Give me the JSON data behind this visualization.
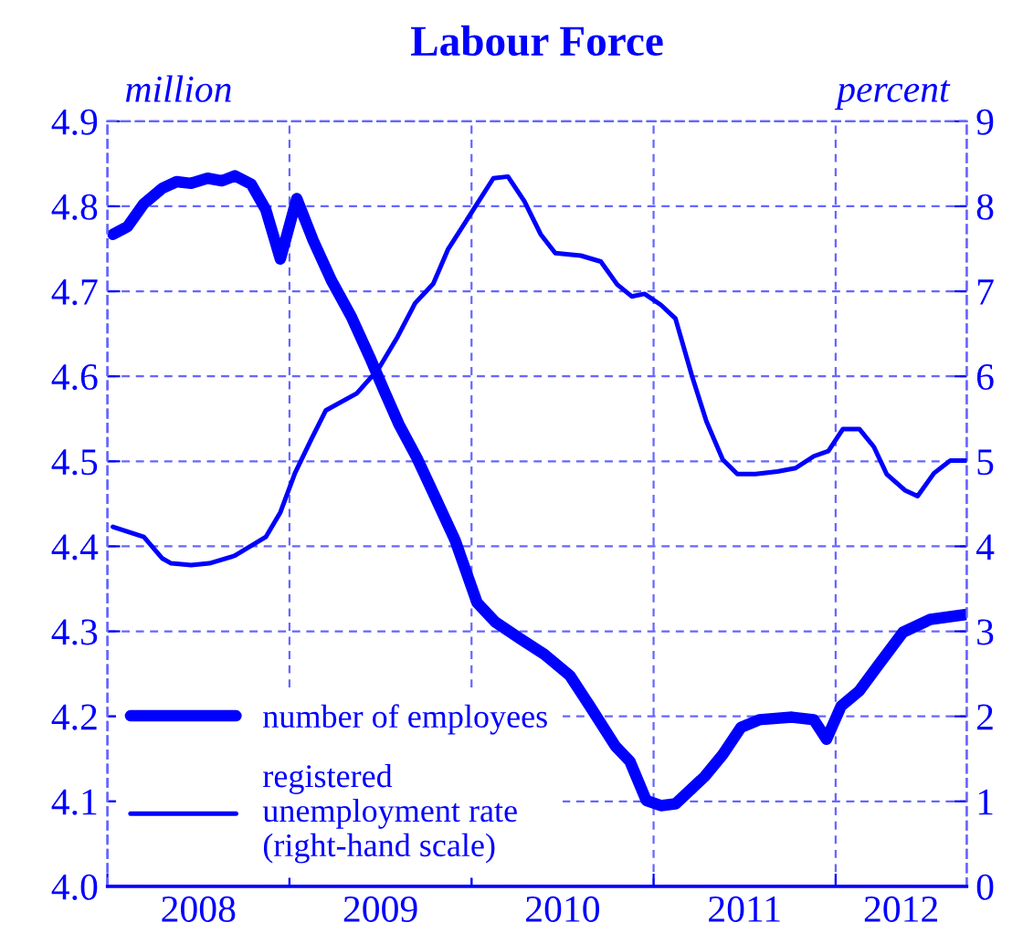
{
  "chart_data": {
    "type": "line",
    "title": "Labour Force",
    "ylabel": "million",
    "y2label": "percent",
    "xlim": [
      2008,
      2012.72
    ],
    "ylim": [
      4.0,
      4.9
    ],
    "y2lim": [
      0,
      9
    ],
    "xticks": [
      {
        "value": 2008,
        "label": null
      },
      {
        "value": 2008.5,
        "label": "2008"
      },
      {
        "value": 2009,
        "label": null
      },
      {
        "value": 2009.5,
        "label": "2009"
      },
      {
        "value": 2010,
        "label": null
      },
      {
        "value": 2010.5,
        "label": "2010"
      },
      {
        "value": 2011,
        "label": null
      },
      {
        "value": 2011.5,
        "label": "2011"
      },
      {
        "value": 2012,
        "label": null
      },
      {
        "value": 2012.36,
        "label": "2012"
      }
    ],
    "yticks": [
      {
        "value": 4.0,
        "label": "4.0"
      },
      4.1,
      4.2,
      4.3,
      4.4,
      4.5,
      4.6,
      4.7,
      4.8,
      4.9
    ],
    "y2ticks": [
      0,
      1,
      2,
      3,
      4,
      5,
      6,
      7,
      8,
      9
    ],
    "grid": true,
    "legend": "bottom left",
    "line_style": "solid",
    "series": [
      {
        "name": "number of employees",
        "color": "#0000ff",
        "x": [
          2008.03,
          2008.11,
          2008.2,
          2008.3,
          2008.38,
          2008.46,
          2008.55,
          2008.63,
          2008.7,
          2008.79,
          2008.87,
          2008.95,
          2009.04,
          2009.13,
          2009.23,
          2009.34,
          2009.44,
          2009.52,
          2009.6,
          2009.7,
          2009.8,
          2009.91,
          2010.03,
          2010.13,
          2010.27,
          2010.4,
          2010.54,
          2010.65,
          2010.79,
          2010.87,
          2010.96,
          2011.04,
          2011.12,
          2011.28,
          2011.38,
          2011.48,
          2011.58,
          2011.76,
          2011.88,
          2011.95,
          2012.03,
          2012.13,
          2012.23,
          2012.37,
          2012.52,
          2012.72
        ],
        "values": [
          4.767,
          4.776,
          4.803,
          4.821,
          4.829,
          4.827,
          4.833,
          4.83,
          4.836,
          4.826,
          4.796,
          4.738,
          4.809,
          4.76,
          4.713,
          4.67,
          4.623,
          4.583,
          4.544,
          4.504,
          4.458,
          4.407,
          4.334,
          4.311,
          4.291,
          4.273,
          4.248,
          4.212,
          4.165,
          4.147,
          4.101,
          4.095,
          4.097,
          4.129,
          4.155,
          4.187,
          4.196,
          4.199,
          4.196,
          4.173,
          4.212,
          4.23,
          4.259,
          4.299,
          4.314,
          4.32
        ]
      },
      {
        "name": "registered unemployment rate (right-hand scale)",
        "color": "#0000ff",
        "axis": "y2",
        "x": [
          2008.03,
          2008.2,
          2008.3,
          2008.35,
          2008.46,
          2008.56,
          2008.7,
          2008.87,
          2008.95,
          2009.03,
          2009.12,
          2009.2,
          2009.37,
          2009.49,
          2009.59,
          2009.69,
          2009.79,
          2009.87,
          2010.01,
          2010.12,
          2010.2,
          2010.29,
          2010.38,
          2010.46,
          2010.6,
          2010.71,
          2010.8,
          2010.88,
          2010.95,
          2011.04,
          2011.12,
          2011.21,
          2011.29,
          2011.38,
          2011.46,
          2011.56,
          2011.68,
          2011.78,
          2011.88,
          2011.96,
          2012.04,
          2012.13,
          2012.21,
          2012.28,
          2012.38,
          2012.45,
          2012.54,
          2012.63,
          2012.72
        ],
        "values": [
          4.23,
          4.11,
          3.86,
          3.8,
          3.78,
          3.8,
          3.89,
          4.11,
          4.4,
          4.86,
          5.26,
          5.6,
          5.8,
          6.09,
          6.45,
          6.86,
          7.09,
          7.49,
          7.96,
          8.33,
          8.35,
          8.06,
          7.67,
          7.45,
          7.42,
          7.35,
          7.08,
          6.94,
          6.97,
          6.84,
          6.68,
          6.01,
          5.47,
          5.02,
          4.85,
          4.85,
          4.88,
          4.92,
          5.06,
          5.12,
          5.38,
          5.38,
          5.17,
          4.85,
          4.66,
          4.59,
          4.86,
          5.01,
          5.01
        ]
      }
    ]
  }
}
